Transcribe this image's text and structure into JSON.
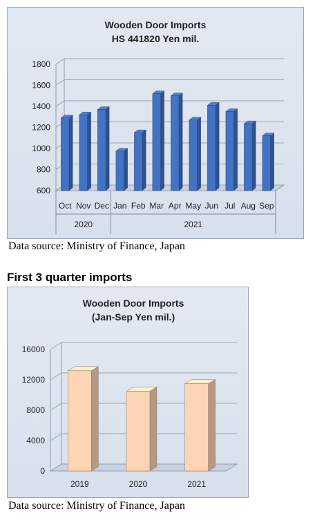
{
  "chart_data": [
    {
      "type": "bar",
      "title": "Wooden Door Imports",
      "subtitle": "HS 441820  Yen mil.",
      "categories": [
        "Oct",
        "Nov",
        "Dec",
        "Jan",
        "Feb",
        "Mar",
        "Apr",
        "May",
        "Jun",
        "Jul",
        "Aug",
        "Sep"
      ],
      "groups": [
        {
          "label": "2020",
          "count": 3
        },
        {
          "label": "2021",
          "count": 9
        }
      ],
      "values": [
        1290,
        1320,
        1370,
        975,
        1150,
        1520,
        1500,
        1270,
        1410,
        1350,
        1235,
        1120
      ],
      "ylim": [
        600,
        1800
      ],
      "yticks": [
        600,
        800,
        1000,
        1200,
        1400,
        1600,
        1800
      ],
      "bar_color": "#4472c4",
      "grid": true
    },
    {
      "type": "bar",
      "title": "Wooden Door Imports",
      "subtitle": "(Jan-Sep Yen mil.)",
      "categories": [
        "2019",
        "2020",
        "2021"
      ],
      "values": [
        13200,
        10500,
        11500
      ],
      "ylim": [
        0,
        16000
      ],
      "yticks": [
        0,
        4000,
        8000,
        12000,
        16000
      ],
      "bar_color": "#fcd5b4",
      "grid": true
    }
  ],
  "sources": {
    "chart1": "Data source: Ministry of Finance, Japan",
    "chart2": "Data source: Ministry of Finance, Japan"
  },
  "section_title": "First 3 quarter imports"
}
